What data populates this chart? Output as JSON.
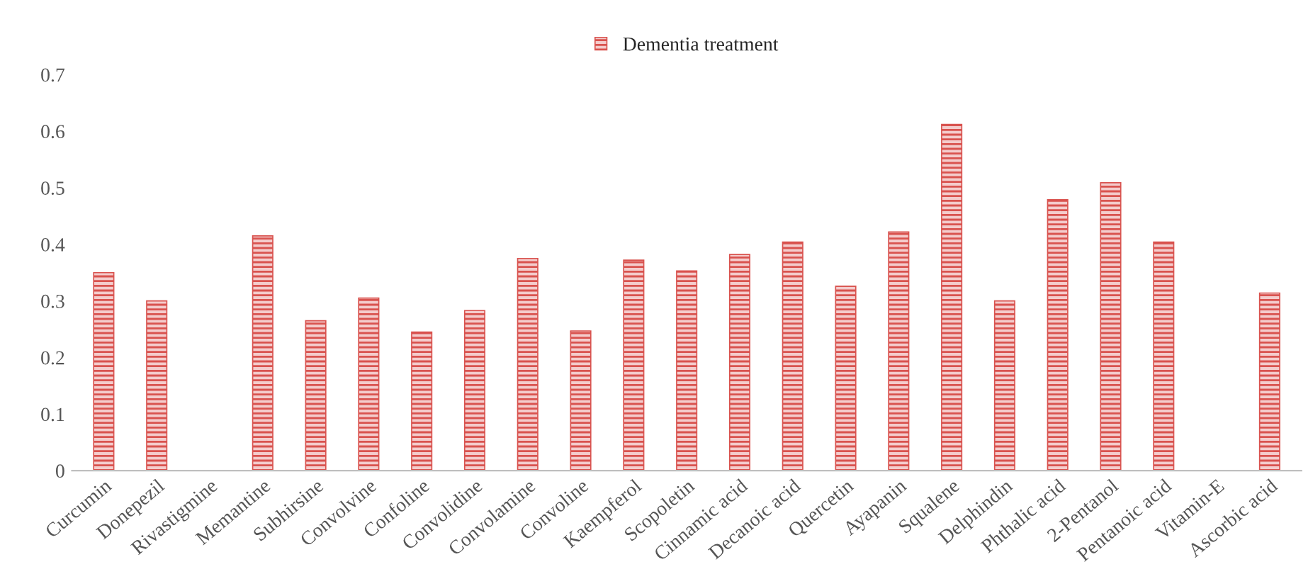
{
  "chart_data": {
    "type": "bar",
    "categories": [
      "Curcumin",
      "Donepezil",
      "Rivastigmine",
      "Memantine",
      "Subhirsine",
      "Convolvine",
      "Confoline",
      "Convolidine",
      "Convolamine",
      "Convoline",
      "Kaempferol",
      "Scopoletin",
      "Cinnamic acid",
      "Decanoic acid",
      "Quercetin",
      "Ayapanin",
      "Squalene",
      "Delphindin",
      "Phthalic acid",
      "2-Pentanol",
      "Pentanoic acid",
      "Vitamin-E",
      "Ascorbic acid"
    ],
    "series": [
      {
        "name": "Dementia treatment",
        "color": "#d9534f",
        "values": [
          0.35,
          0.3,
          0,
          0.415,
          0.265,
          0.305,
          0.245,
          0.283,
          0.375,
          0.247,
          0.372,
          0.353,
          0.382,
          0.404,
          0.326,
          0.422,
          0.612,
          0.3,
          0.479,
          0.509,
          0.404,
          0,
          0.314
        ]
      }
    ],
    "ylim": [
      0,
      0.7
    ],
    "yticks": [
      0,
      0.1,
      0.2,
      0.3,
      0.4,
      0.5,
      0.6,
      0.7
    ],
    "grid": false,
    "legend": "top"
  }
}
